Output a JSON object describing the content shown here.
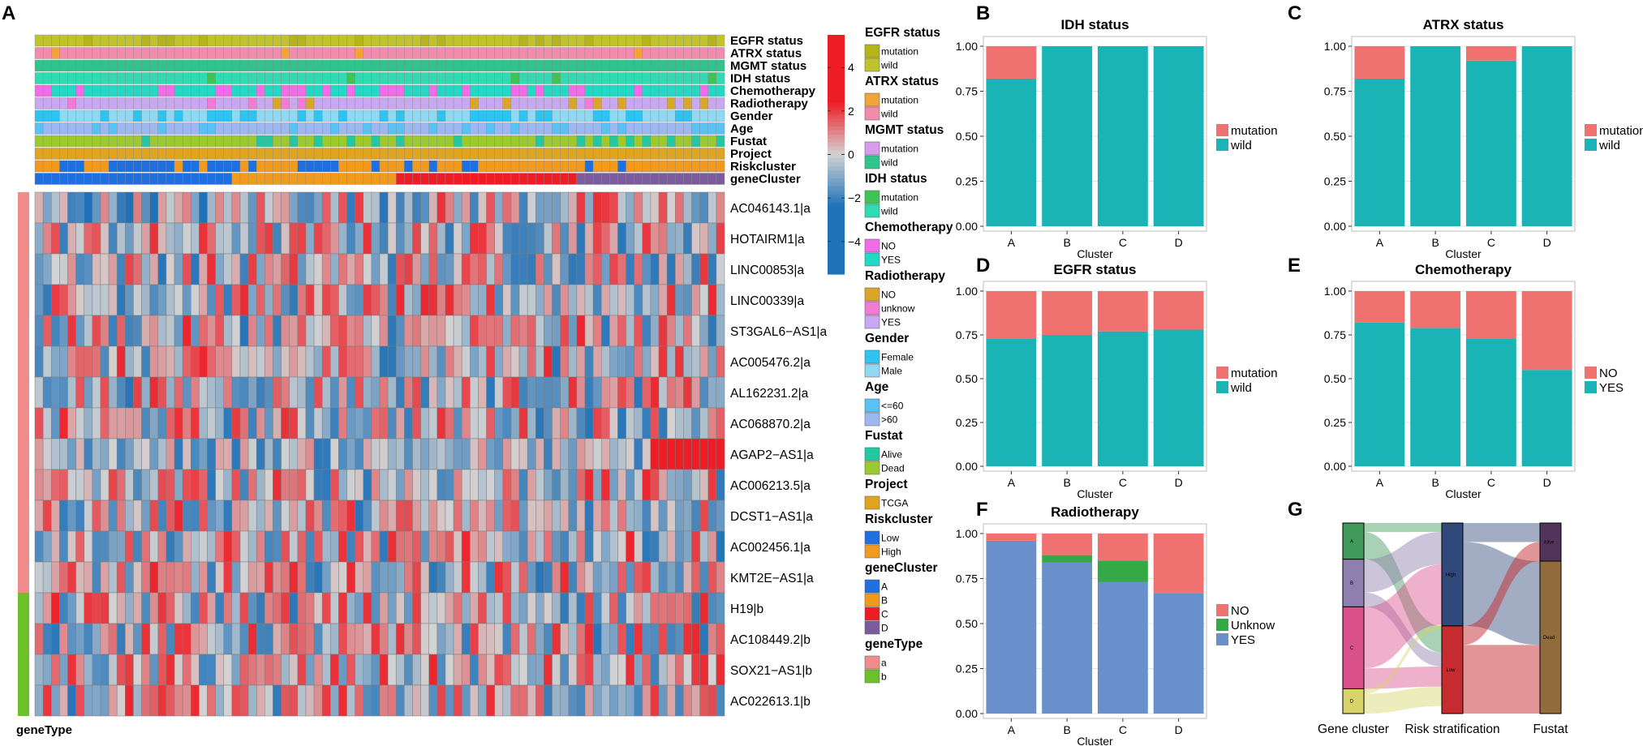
{
  "colors": {
    "mutation_red": "#EF7170",
    "wild_teal": "#1BB4B6",
    "unknow_green": "#35A945",
    "yes_blue": "#6A90CC",
    "heat_high": "#EE1C25",
    "heat_mid": "#D3D3D3",
    "heat_low": "#1F71B8",
    "alluvial_high": "#30497A",
    "alluvial_low": "#C62B2F",
    "alluvial_alive": "#52345A",
    "alluvial_dead": "#936C3E",
    "alluvial_A": "#3F9A5C",
    "alluvial_B": "#8E7FAE",
    "alluvial_C": "#D9508A",
    "alluvial_D": "#D8D46A"
  },
  "panel_letters": [
    "A",
    "B",
    "C",
    "D",
    "E",
    "F",
    "G"
  ],
  "heatmap": {
    "annotation_tracks": [
      "EGFR status",
      "ATRX status",
      "MGMT status",
      "IDH status",
      "Chemotherapy",
      "Radiotherapy",
      "Gender",
      "Age",
      "Fustat",
      "Project",
      "Riskcluster",
      "geneCluster"
    ],
    "genes": [
      "AC046143.1|a",
      "HOTAIRM1|a",
      "LINC00853|a",
      "LINC00339|a",
      "ST3GAL6−AS1|a",
      "AC005476.2|a",
      "AL162231.2|a",
      "AC068870.2|a",
      "AGAP2−AS1|a",
      "AC006213.5|a",
      "DCST1−AS1|a",
      "AC002456.1|a",
      "KMT2E−AS1|a",
      "H19|b",
      "AC108449.2|b",
      "SOX21−AS1|b",
      "AC022613.1|b"
    ],
    "gene_types": [
      "a",
      "a",
      "a",
      "a",
      "a",
      "a",
      "a",
      "a",
      "a",
      "a",
      "a",
      "a",
      "a",
      "b",
      "b",
      "b",
      "b"
    ],
    "gene_type_label": "geneType",
    "n_samples": 84,
    "colorbar_ticks": [
      "4",
      "2",
      "0",
      "−2",
      "−4"
    ]
  },
  "legend": [
    {
      "title": "EGFR status",
      "items": [
        {
          "label": "mutation",
          "color": "#B5B51A"
        },
        {
          "label": "wild",
          "color": "#BFC42A"
        }
      ]
    },
    {
      "title": "ATRX status",
      "items": [
        {
          "label": "mutation",
          "color": "#F2A33A"
        },
        {
          "label": "wild",
          "color": "#F28CAC"
        }
      ]
    },
    {
      "title": "MGMT status",
      "items": [
        {
          "label": "mutation",
          "color": "#D99BEB"
        },
        {
          "label": "wild",
          "color": "#2DC48D"
        }
      ]
    },
    {
      "title": "IDH status",
      "items": [
        {
          "label": "mutation",
          "color": "#3DC455"
        },
        {
          "label": "wild",
          "color": "#2EDBB3"
        }
      ]
    },
    {
      "title": "Chemotherapy",
      "items": [
        {
          "label": "NO",
          "color": "#F26BE8"
        },
        {
          "label": "YES",
          "color": "#22D9C6"
        }
      ]
    },
    {
      "title": "Radiotherapy",
      "items": [
        {
          "label": "NO",
          "color": "#D9A62B"
        },
        {
          "label": "unknow",
          "color": "#F27BD6"
        },
        {
          "label": "YES",
          "color": "#C8A8F0"
        }
      ]
    },
    {
      "title": "Gender",
      "items": [
        {
          "label": "Female",
          "color": "#2EC4F2"
        },
        {
          "label": "Male",
          "color": "#8FD9F5"
        }
      ]
    },
    {
      "title": "Age",
      "items": [
        {
          "label": "<=60",
          "color": "#58C2F5"
        },
        {
          "label": ">60",
          "color": "#9DB8F0"
        }
      ]
    },
    {
      "title": "Fustat",
      "items": [
        {
          "label": "Alive",
          "color": "#22C9A0"
        },
        {
          "label": "Dead",
          "color": "#9BC92E"
        }
      ]
    },
    {
      "title": "Project",
      "items": [
        {
          "label": "TCGA",
          "color": "#E0A41F"
        }
      ]
    },
    {
      "title": "Riskcluster",
      "items": [
        {
          "label": "Low",
          "color": "#1E6FE0"
        },
        {
          "label": "High",
          "color": "#F29A1C"
        }
      ]
    },
    {
      "title": "geneCluster",
      "items": [
        {
          "label": "A",
          "color": "#1E6FE0"
        },
        {
          "label": "B",
          "color": "#F29A1C"
        },
        {
          "label": "C",
          "color": "#EE1C25"
        },
        {
          "label": "D",
          "color": "#7A5C9E"
        }
      ]
    },
    {
      "title": "geneType",
      "items": [
        {
          "label": "a",
          "color": "#F08C8C"
        },
        {
          "label": "b",
          "color": "#6CC12A"
        }
      ]
    }
  ],
  "chart_data": [
    {
      "id": "B",
      "type": "bar",
      "stacked": true,
      "title": "IDH status",
      "xlabel": "Cluster",
      "ylabel": "",
      "categories": [
        "A",
        "B",
        "C",
        "D"
      ],
      "ylim": [
        0,
        1
      ],
      "yticks": [
        "0.00",
        "0.25",
        "0.50",
        "0.75",
        "1.00"
      ],
      "series": [
        {
          "name": "mutation",
          "color": "#EF7170",
          "values": [
            0.18,
            0,
            0,
            0
          ]
        },
        {
          "name": "wild",
          "color": "#1BB4B6",
          "values": [
            0.82,
            1,
            1,
            1
          ]
        }
      ],
      "legend": [
        "mutation",
        "wild"
      ]
    },
    {
      "id": "C",
      "type": "bar",
      "stacked": true,
      "title": "ATRX status",
      "xlabel": "Cluster",
      "ylabel": "",
      "categories": [
        "A",
        "B",
        "C",
        "D"
      ],
      "ylim": [
        0,
        1
      ],
      "yticks": [
        "0.00",
        "0.25",
        "0.50",
        "0.75",
        "1.00"
      ],
      "series": [
        {
          "name": "mutation",
          "color": "#EF7170",
          "values": [
            0.18,
            0,
            0.08,
            0
          ]
        },
        {
          "name": "wild",
          "color": "#1BB4B6",
          "values": [
            0.82,
            1,
            0.92,
            1
          ]
        }
      ],
      "legend": [
        "mutation",
        "wild"
      ]
    },
    {
      "id": "D",
      "type": "bar",
      "stacked": true,
      "title": "EGFR status",
      "xlabel": "Cluster",
      "ylabel": "",
      "categories": [
        "A",
        "B",
        "C",
        "D"
      ],
      "ylim": [
        0,
        1
      ],
      "yticks": [
        "0.00",
        "0.25",
        "0.50",
        "0.75",
        "1.00"
      ],
      "series": [
        {
          "name": "mutation",
          "color": "#EF7170",
          "values": [
            0.27,
            0.25,
            0.23,
            0.22
          ]
        },
        {
          "name": "wild",
          "color": "#1BB4B6",
          "values": [
            0.73,
            0.75,
            0.77,
            0.78
          ]
        }
      ],
      "legend": [
        "mutation",
        "wild"
      ]
    },
    {
      "id": "E",
      "type": "bar",
      "stacked": true,
      "title": "Chemotherapy",
      "xlabel": "Cluster",
      "ylabel": "",
      "categories": [
        "A",
        "B",
        "C",
        "D"
      ],
      "ylim": [
        0,
        1
      ],
      "yticks": [
        "0.00",
        "0.25",
        "0.50",
        "0.75",
        "1.00"
      ],
      "series": [
        {
          "name": "NO",
          "color": "#EF7170",
          "values": [
            0.18,
            0.21,
            0.27,
            0.45
          ]
        },
        {
          "name": "YES",
          "color": "#1BB4B6",
          "values": [
            0.82,
            0.79,
            0.73,
            0.55
          ]
        }
      ],
      "legend": [
        "NO",
        "YES"
      ]
    },
    {
      "id": "F",
      "type": "bar",
      "stacked": true,
      "title": "Radiotherapy",
      "xlabel": "Cluster",
      "ylabel": "",
      "categories": [
        "A",
        "B",
        "C",
        "D"
      ],
      "ylim": [
        0,
        1
      ],
      "yticks": [
        "0.00",
        "0.25",
        "0.50",
        "0.75",
        "1.00"
      ],
      "series": [
        {
          "name": "NO",
          "color": "#EF7170",
          "values": [
            0.04,
            0.12,
            0.15,
            0.33
          ]
        },
        {
          "name": "Unknow",
          "color": "#35A945",
          "values": [
            0,
            0.04,
            0.12,
            0
          ]
        },
        {
          "name": "YES",
          "color": "#6A90CC",
          "values": [
            0.96,
            0.84,
            0.73,
            0.67
          ]
        }
      ],
      "legend": [
        "NO",
        "Unknow",
        "YES"
      ]
    },
    {
      "id": "G",
      "type": "alluvial",
      "axes": [
        "Gene cluster",
        "Risk stratification",
        "Fustat"
      ],
      "strata": {
        "Gene cluster": [
          {
            "label": "A",
            "value": 0.19
          },
          {
            "label": "B",
            "value": 0.25
          },
          {
            "label": "C",
            "value": 0.43
          },
          {
            "label": "D",
            "value": 0.13
          }
        ],
        "Risk stratification": [
          {
            "label": "High",
            "value": 0.54
          },
          {
            "label": "Low",
            "value": 0.46
          }
        ],
        "Fustat": [
          {
            "label": "Alive",
            "value": 0.2
          },
          {
            "label": "Dead",
            "value": 0.8
          }
        ]
      }
    }
  ]
}
